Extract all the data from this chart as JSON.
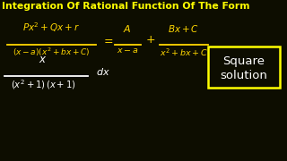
{
  "bg_color": "#0d0d00",
  "title": "Integration Of Rational Function Of The Form",
  "title_color": "#FFFF00",
  "formula_color": "#FFD700",
  "white_color": "#ffffff",
  "box_color": "#FFFF00",
  "square_line1": "Square",
  "square_line2": "solution"
}
